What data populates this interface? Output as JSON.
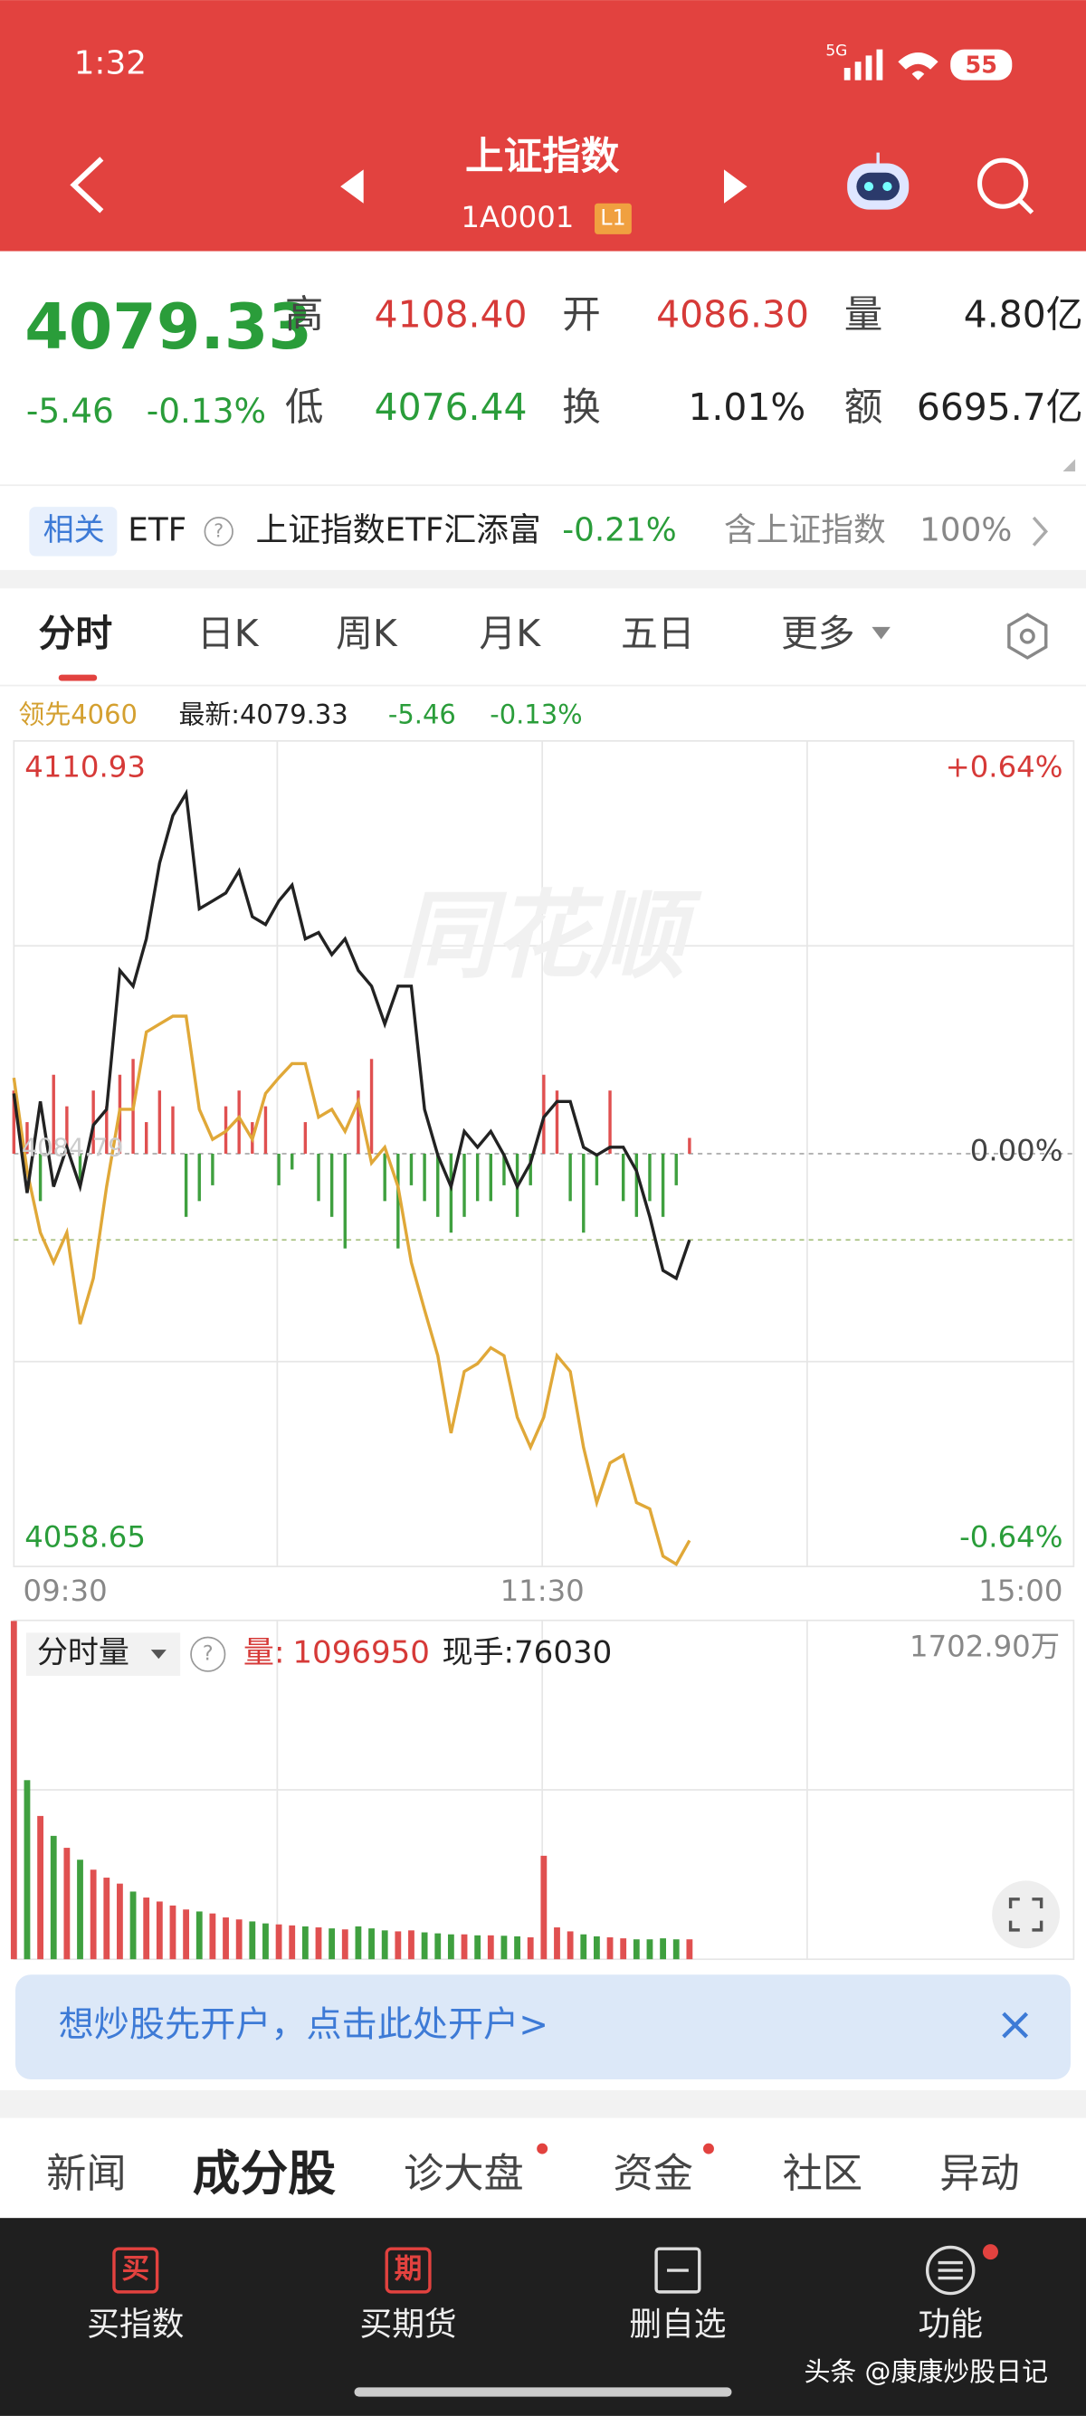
{
  "status_bar": {
    "time": "1:32",
    "network": "5G",
    "battery": "55"
  },
  "header": {
    "title": "上证指数",
    "code": "1A0001",
    "level": "L1"
  },
  "quote": {
    "price": "4079.33",
    "change": "-5.46",
    "change_pct": "-0.13%",
    "stats": [
      {
        "label": "高",
        "value": "4108.40"
      },
      {
        "label": "开",
        "value": "4086.30"
      },
      {
        "label": "量",
        "value": "4.80亿"
      },
      {
        "label": "低",
        "value": "4076.44"
      },
      {
        "label": "换",
        "value": "1.01%"
      },
      {
        "label": "额",
        "value": "6695.7亿"
      }
    ]
  },
  "etf": {
    "tag": "相关",
    "type": "ETF",
    "help": "?",
    "name": "上证指数ETF汇添富",
    "change": "-0.21%",
    "holding_label": "含上证指数",
    "holding": "100%"
  },
  "tabs": [
    "分时",
    "日K",
    "周K",
    "月K",
    "五日",
    "更多"
  ],
  "legend": {
    "leader": "领先4060",
    "latest": "最新:4079.33",
    "change": "-5.46",
    "change_pct": "-0.13%"
  },
  "chart": {
    "watermark": "同花顺",
    "ymax": 4110.93,
    "ymin": 4058.65,
    "prev_close": 4084.79,
    "pct_top": "+0.64%",
    "pct_mid": "0.00%",
    "pct_bottom": "-0.64%",
    "times": [
      "09:30",
      "11:30",
      "15:00"
    ],
    "price": [
      4088.6,
      4082.3,
      4088.1,
      4082.7,
      4085.2,
      4082.7,
      4086.6,
      4087.6,
      4096.4,
      4095.4,
      4098.4,
      4103.2,
      4106.2,
      4107.6,
      4100.3,
      4100.8,
      4101.3,
      4102.7,
      4099.8,
      4099.3,
      4100.8,
      4101.8,
      4098.4,
      4098.8,
      4097.4,
      4098.4,
      4096.4,
      4095.4,
      4093.0,
      4095.4,
      4095.4,
      4087.6,
      4084.7,
      4082.7,
      4086.2,
      4085.2,
      4086.2,
      4084.7,
      4082.7,
      4084.2,
      4087.1,
      4088.1,
      4088.1,
      4085.2,
      4084.7,
      4085.2,
      4085.2,
      4083.7,
      4080.8,
      4077.4,
      4076.9,
      4079.33
    ],
    "leader": [
      4089.6,
      4083.7,
      4079.8,
      4077.9,
      4079.8,
      4074.0,
      4076.9,
      4082.7,
      4087.6,
      4087.6,
      4092.5,
      4093.0,
      4093.5,
      4093.5,
      4087.6,
      4085.7,
      4086.2,
      4087.1,
      4085.7,
      4088.6,
      4089.6,
      4090.5,
      4090.5,
      4087.1,
      4087.6,
      4086.2,
      4088.1,
      4084.2,
      4085.2,
      4082.7,
      4077.9,
      4074.9,
      4072.0,
      4067.1,
      4071.0,
      4071.5,
      4072.5,
      4072.0,
      4068.1,
      4066.2,
      4068.1,
      4072.0,
      4071.0,
      4066.2,
      4062.7,
      4065.2,
      4065.7,
      4062.7,
      4062.3,
      4059.3,
      4058.8,
      4060.3
    ],
    "breadth": [
      4,
      2,
      -3,
      5,
      3,
      -2,
      4,
      3,
      5,
      6,
      2,
      4,
      3,
      -4,
      -3,
      -2,
      3,
      4,
      2,
      3,
      -2,
      -1,
      2,
      -3,
      -4,
      -6,
      4,
      6,
      -3,
      -6,
      -2,
      -3,
      -4,
      -5,
      -4,
      -3,
      -3,
      -2,
      -4,
      -2,
      5,
      4,
      -3,
      -5,
      -2,
      4,
      -3,
      -4,
      -3,
      -4,
      -2,
      1
    ]
  },
  "volume": {
    "selector": "分时量",
    "help": "?",
    "vol_label": "量:",
    "vol": "1096950",
    "hand": "现手:76030",
    "max": 1702.9,
    "max_label": "1702.90万",
    "values": [
      1700,
      900,
      720,
      620,
      560,
      500,
      450,
      410,
      380,
      340,
      310,
      290,
      270,
      250,
      240,
      230,
      210,
      200,
      190,
      180,
      175,
      170,
      165,
      160,
      155,
      150,
      165,
      155,
      145,
      140,
      145,
      135,
      130,
      125,
      125,
      120,
      120,
      118,
      115,
      110,
      520,
      160,
      140,
      125,
      115,
      110,
      105,
      100,
      100,
      105,
      100,
      100
    ]
  },
  "banner": {
    "text": "想炒股先开户，点击此处开户>",
    "close": "×"
  },
  "bottom_tabs": [
    "新闻",
    "成分股",
    "诊大盘",
    "资金",
    "社区",
    "异动"
  ],
  "nav": [
    {
      "icon": "买",
      "label": "买指数"
    },
    {
      "icon": "期",
      "label": "买期货"
    },
    {
      "label": "删自选"
    },
    {
      "label": "功能"
    }
  ],
  "watermark": "头条 @康康炒股日记"
}
